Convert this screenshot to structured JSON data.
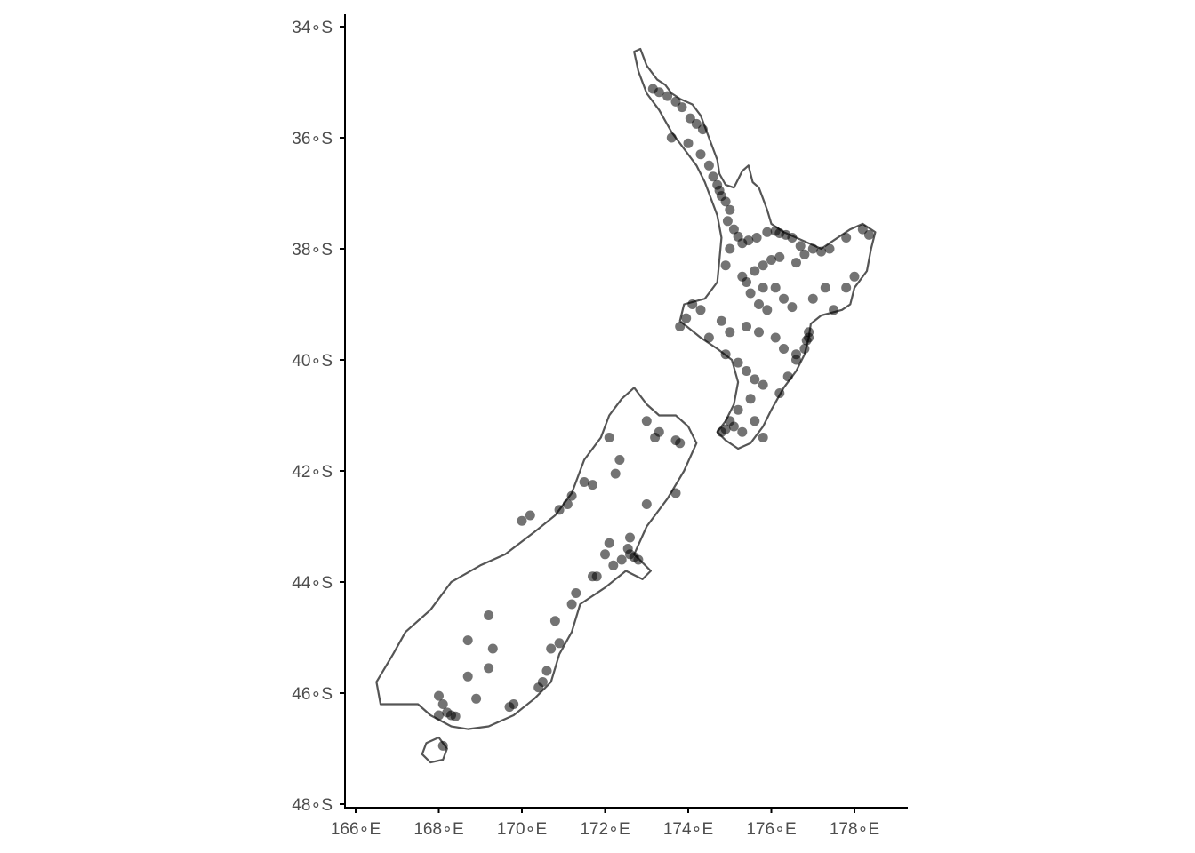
{
  "map": {
    "projection": "lon-lat",
    "lon_range": [
      165.8,
      179.2
    ],
    "lat_range": [
      -48.0,
      -33.8
    ],
    "x_ticks": [
      {
        "value": 166,
        "label": "166∘E"
      },
      {
        "value": 168,
        "label": "168∘E"
      },
      {
        "value": 170,
        "label": "170∘E"
      },
      {
        "value": 172,
        "label": "172∘E"
      },
      {
        "value": 174,
        "label": "174∘E"
      },
      {
        "value": 176,
        "label": "176∘E"
      },
      {
        "value": 178,
        "label": "178∘E"
      }
    ],
    "y_ticks": [
      {
        "value": -34,
        "label": "34∘S"
      },
      {
        "value": -36,
        "label": "36∘S"
      },
      {
        "value": -38,
        "label": "38∘S"
      },
      {
        "value": -40,
        "label": "40∘S"
      },
      {
        "value": -42,
        "label": "42∘S"
      },
      {
        "value": -44,
        "label": "44∘S"
      },
      {
        "value": -46,
        "label": "46∘S"
      },
      {
        "value": -48,
        "label": "48∘S"
      }
    ],
    "colors": {
      "coastline": "#555555",
      "points": "#000000",
      "axis": "#000000",
      "labels": "#4d4d4d"
    },
    "point_opacity": 0.55
  },
  "regions": [
    {
      "name": "North Island",
      "coords": [
        [
          172.7,
          -34.45
        ],
        [
          172.85,
          -34.4
        ],
        [
          173.0,
          -34.7
        ],
        [
          173.25,
          -34.95
        ],
        [
          173.45,
          -35.05
        ],
        [
          173.6,
          -35.2
        ],
        [
          173.8,
          -35.3
        ],
        [
          174.1,
          -35.4
        ],
        [
          174.3,
          -35.6
        ],
        [
          174.4,
          -35.8
        ],
        [
          174.55,
          -36.1
        ],
        [
          174.7,
          -36.4
        ],
        [
          174.75,
          -36.65
        ],
        [
          174.9,
          -36.85
        ],
        [
          175.1,
          -36.9
        ],
        [
          175.3,
          -36.6
        ],
        [
          175.45,
          -36.5
        ],
        [
          175.55,
          -36.8
        ],
        [
          175.7,
          -36.9
        ],
        [
          175.8,
          -37.1
        ],
        [
          175.9,
          -37.3
        ],
        [
          176.0,
          -37.55
        ],
        [
          176.3,
          -37.7
        ],
        [
          176.6,
          -37.8
        ],
        [
          176.9,
          -37.9
        ],
        [
          177.2,
          -38.0
        ],
        [
          177.5,
          -37.85
        ],
        [
          177.9,
          -37.65
        ],
        [
          178.2,
          -37.55
        ],
        [
          178.5,
          -37.7
        ],
        [
          178.4,
          -38.0
        ],
        [
          178.3,
          -38.4
        ],
        [
          178.0,
          -38.7
        ],
        [
          177.9,
          -39.0
        ],
        [
          177.7,
          -39.1
        ],
        [
          177.2,
          -39.2
        ],
        [
          176.95,
          -39.35
        ],
        [
          176.9,
          -39.6
        ],
        [
          176.8,
          -39.9
        ],
        [
          176.6,
          -40.2
        ],
        [
          176.3,
          -40.5
        ],
        [
          176.0,
          -40.9
        ],
        [
          175.8,
          -41.2
        ],
        [
          175.5,
          -41.5
        ],
        [
          175.2,
          -41.6
        ],
        [
          174.9,
          -41.45
        ],
        [
          174.7,
          -41.3
        ],
        [
          174.9,
          -41.1
        ],
        [
          175.1,
          -40.8
        ],
        [
          175.2,
          -40.4
        ],
        [
          175.05,
          -40.0
        ],
        [
          174.7,
          -39.8
        ],
        [
          174.3,
          -39.6
        ],
        [
          173.8,
          -39.3
        ],
        [
          173.9,
          -39.0
        ],
        [
          174.4,
          -38.9
        ],
        [
          174.7,
          -38.6
        ],
        [
          174.75,
          -38.2
        ],
        [
          174.8,
          -37.8
        ],
        [
          174.7,
          -37.4
        ],
        [
          174.5,
          -37.0
        ],
        [
          174.4,
          -36.8
        ],
        [
          174.2,
          -36.5
        ],
        [
          173.9,
          -36.2
        ],
        [
          173.6,
          -35.9
        ],
        [
          173.3,
          -35.5
        ],
        [
          173.0,
          -35.2
        ],
        [
          172.8,
          -34.8
        ],
        [
          172.7,
          -34.45
        ]
      ]
    },
    {
      "name": "South Island",
      "coords": [
        [
          172.7,
          -40.5
        ],
        [
          173.0,
          -40.8
        ],
        [
          173.3,
          -41.0
        ],
        [
          173.7,
          -41.0
        ],
        [
          174.0,
          -41.2
        ],
        [
          174.2,
          -41.5
        ],
        [
          173.9,
          -42.0
        ],
        [
          173.5,
          -42.5
        ],
        [
          173.0,
          -43.0
        ],
        [
          172.7,
          -43.5
        ],
        [
          173.1,
          -43.8
        ],
        [
          172.9,
          -43.95
        ],
        [
          172.5,
          -43.8
        ],
        [
          172.0,
          -44.1
        ],
        [
          171.4,
          -44.4
        ],
        [
          171.2,
          -44.9
        ],
        [
          170.9,
          -45.3
        ],
        [
          170.7,
          -45.8
        ],
        [
          170.3,
          -46.1
        ],
        [
          169.8,
          -46.4
        ],
        [
          169.2,
          -46.6
        ],
        [
          168.7,
          -46.65
        ],
        [
          168.3,
          -46.6
        ],
        [
          167.8,
          -46.4
        ],
        [
          167.5,
          -46.2
        ],
        [
          166.6,
          -46.2
        ],
        [
          166.5,
          -45.8
        ],
        [
          166.9,
          -45.3
        ],
        [
          167.2,
          -44.9
        ],
        [
          167.8,
          -44.5
        ],
        [
          168.3,
          -44.0
        ],
        [
          169.0,
          -43.7
        ],
        [
          169.6,
          -43.5
        ],
        [
          170.3,
          -43.1
        ],
        [
          170.8,
          -42.8
        ],
        [
          171.2,
          -42.4
        ],
        [
          171.5,
          -41.8
        ],
        [
          171.9,
          -41.4
        ],
        [
          172.1,
          -41.0
        ],
        [
          172.4,
          -40.7
        ],
        [
          172.7,
          -40.5
        ]
      ]
    },
    {
      "name": "Stewart Island",
      "coords": [
        [
          167.7,
          -46.9
        ],
        [
          168.0,
          -46.8
        ],
        [
          168.2,
          -47.0
        ],
        [
          168.1,
          -47.2
        ],
        [
          167.8,
          -47.25
        ],
        [
          167.6,
          -47.1
        ],
        [
          167.7,
          -46.9
        ]
      ]
    }
  ],
  "points": [
    [
      173.15,
      -35.12
    ],
    [
      173.3,
      -35.18
    ],
    [
      173.5,
      -35.25
    ],
    [
      173.7,
      -35.35
    ],
    [
      173.85,
      -35.45
    ],
    [
      174.05,
      -35.65
    ],
    [
      174.2,
      -35.75
    ],
    [
      174.35,
      -35.85
    ],
    [
      173.6,
      -36.0
    ],
    [
      174.0,
      -36.1
    ],
    [
      174.3,
      -36.3
    ],
    [
      174.5,
      -36.5
    ],
    [
      174.6,
      -36.7
    ],
    [
      174.7,
      -36.85
    ],
    [
      174.75,
      -36.95
    ],
    [
      174.8,
      -37.05
    ],
    [
      174.9,
      -37.15
    ],
    [
      175.0,
      -37.3
    ],
    [
      174.95,
      -37.5
    ],
    [
      175.1,
      -37.65
    ],
    [
      175.2,
      -37.78
    ],
    [
      175.3,
      -37.9
    ],
    [
      175.45,
      -37.85
    ],
    [
      175.65,
      -37.8
    ],
    [
      175.9,
      -37.7
    ],
    [
      176.1,
      -37.68
    ],
    [
      176.2,
      -37.72
    ],
    [
      176.35,
      -37.75
    ],
    [
      176.5,
      -37.8
    ],
    [
      176.7,
      -37.95
    ],
    [
      177.0,
      -38.0
    ],
    [
      177.2,
      -38.05
    ],
    [
      177.4,
      -38.0
    ],
    [
      177.8,
      -37.8
    ],
    [
      178.2,
      -37.65
    ],
    [
      178.35,
      -37.75
    ],
    [
      176.8,
      -38.1
    ],
    [
      176.6,
      -38.25
    ],
    [
      176.2,
      -38.15
    ],
    [
      176.0,
      -38.2
    ],
    [
      175.8,
      -38.3
    ],
    [
      175.6,
      -38.4
    ],
    [
      175.4,
      -38.6
    ],
    [
      175.5,
      -38.8
    ],
    [
      175.8,
      -38.7
    ],
    [
      176.1,
      -38.7
    ],
    [
      176.3,
      -38.9
    ],
    [
      176.5,
      -39.05
    ],
    [
      177.0,
      -38.9
    ],
    [
      177.3,
      -38.7
    ],
    [
      177.8,
      -38.7
    ],
    [
      178.0,
      -38.5
    ],
    [
      177.5,
      -39.1
    ],
    [
      176.9,
      -39.5
    ],
    [
      176.85,
      -39.65
    ],
    [
      176.6,
      -39.9
    ],
    [
      176.3,
      -39.8
    ],
    [
      176.1,
      -39.6
    ],
    [
      175.7,
      -39.5
    ],
    [
      175.4,
      -39.4
    ],
    [
      175.0,
      -39.5
    ],
    [
      174.8,
      -39.3
    ],
    [
      174.3,
      -39.1
    ],
    [
      174.1,
      -39.0
    ],
    [
      173.95,
      -39.25
    ],
    [
      173.8,
      -39.4
    ],
    [
      174.5,
      -39.6
    ],
    [
      174.9,
      -39.9
    ],
    [
      175.2,
      -40.05
    ],
    [
      175.4,
      -40.2
    ],
    [
      175.6,
      -40.35
    ],
    [
      175.8,
      -40.45
    ],
    [
      175.5,
      -40.7
    ],
    [
      175.2,
      -40.9
    ],
    [
      175.0,
      -41.1
    ],
    [
      174.9,
      -41.25
    ],
    [
      174.8,
      -41.3
    ],
    [
      175.1,
      -41.2
    ],
    [
      175.3,
      -41.3
    ],
    [
      175.6,
      -41.1
    ],
    [
      175.8,
      -41.4
    ],
    [
      176.2,
      -40.6
    ],
    [
      176.4,
      -40.3
    ],
    [
      176.6,
      -40.0
    ],
    [
      176.9,
      -39.6
    ],
    [
      176.8,
      -39.8
    ],
    [
      175.9,
      -39.1
    ],
    [
      175.7,
      -39.0
    ],
    [
      175.3,
      -38.5
    ],
    [
      175.0,
      -38.0
    ],
    [
      174.9,
      -38.3
    ],
    [
      173.3,
      -41.3
    ],
    [
      173.2,
      -41.4
    ],
    [
      173.0,
      -41.1
    ],
    [
      173.8,
      -41.5
    ],
    [
      173.7,
      -41.45
    ],
    [
      172.1,
      -41.4
    ],
    [
      172.35,
      -41.8
    ],
    [
      172.25,
      -42.05
    ],
    [
      171.7,
      -42.25
    ],
    [
      171.2,
      -42.45
    ],
    [
      171.1,
      -42.6
    ],
    [
      170.9,
      -42.7
    ],
    [
      171.5,
      -42.2
    ],
    [
      173.0,
      -42.6
    ],
    [
      173.7,
      -42.4
    ],
    [
      172.6,
      -43.5
    ],
    [
      172.7,
      -43.55
    ],
    [
      172.55,
      -43.4
    ],
    [
      172.4,
      -43.6
    ],
    [
      172.2,
      -43.7
    ],
    [
      172.0,
      -43.5
    ],
    [
      172.1,
      -43.3
    ],
    [
      172.6,
      -43.2
    ],
    [
      172.8,
      -43.6
    ],
    [
      171.7,
      -43.9
    ],
    [
      171.3,
      -44.2
    ],
    [
      171.2,
      -44.4
    ],
    [
      170.8,
      -44.7
    ],
    [
      170.9,
      -45.1
    ],
    [
      170.7,
      -45.2
    ],
    [
      170.5,
      -45.8
    ],
    [
      170.4,
      -45.9
    ],
    [
      170.6,
      -45.6
    ],
    [
      169.8,
      -46.2
    ],
    [
      169.7,
      -46.25
    ],
    [
      169.2,
      -44.6
    ],
    [
      169.3,
      -45.2
    ],
    [
      169.2,
      -45.55
    ],
    [
      168.7,
      -45.05
    ],
    [
      168.7,
      -45.7
    ],
    [
      168.9,
      -46.1
    ],
    [
      168.2,
      -46.35
    ],
    [
      168.3,
      -46.4
    ],
    [
      168.4,
      -46.42
    ],
    [
      168.0,
      -46.05
    ],
    [
      168.1,
      -46.2
    ],
    [
      168.0,
      -46.4
    ],
    [
      168.1,
      -46.95
    ],
    [
      171.8,
      -43.9
    ],
    [
      170.0,
      -42.9
    ],
    [
      170.2,
      -42.8
    ]
  ]
}
